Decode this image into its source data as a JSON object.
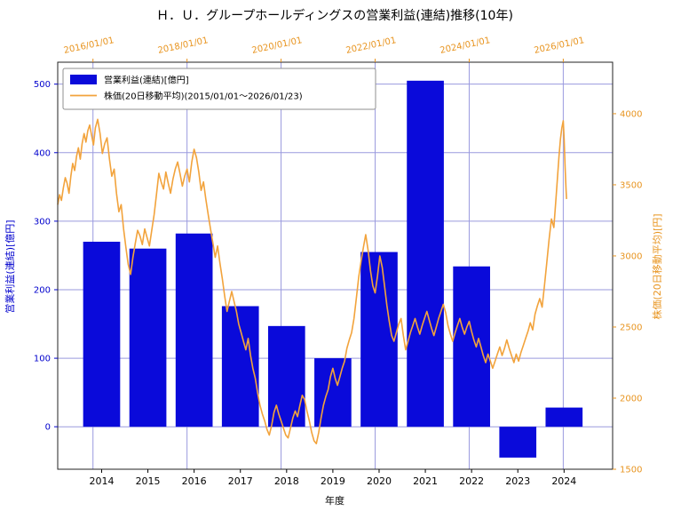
{
  "title": "Ｈ．Ｕ．グループホールディングスの営業利益(連結)推移(10年)",
  "legend": {
    "items": [
      {
        "type": "bar",
        "label": "営業利益(連結)[億円]"
      },
      {
        "type": "line",
        "label": "株価(20日移動平均)(2015/01/01～2026/01/23)"
      }
    ]
  },
  "chart_data": {
    "type": "bar+line",
    "title": "Ｈ．Ｕ．グループホールディングスの営業利益(連結)推移(10年)",
    "xlabel": "年度",
    "ylabel_left": "営業利益(連結)[億円]",
    "ylabel_right": "株価(20日移動平均)[円]",
    "grid": {
      "color": "#9a9ade"
    },
    "frame_color": "#222222",
    "bars": {
      "name": "営業利益(連結)[億円]",
      "axis": "left",
      "color": "#0a0ada",
      "width_years": 0.8,
      "categories": [
        2014,
        2015,
        2016,
        2017,
        2018,
        2019,
        2020,
        2021,
        2022,
        2023,
        2024
      ],
      "values": [
        270,
        260,
        282,
        176,
        147,
        100,
        255,
        505,
        234,
        -45,
        28
      ]
    },
    "line": {
      "name": "株価(20日移動平均)(2015/01/01～2026/01/23)",
      "axis": "right",
      "color": "#f2a33c",
      "points": [
        [
          2015.25,
          3360
        ],
        [
          2015.29,
          3430
        ],
        [
          2015.33,
          3390
        ],
        [
          2015.37,
          3480
        ],
        [
          2015.41,
          3550
        ],
        [
          2015.45,
          3510
        ],
        [
          2015.49,
          3440
        ],
        [
          2015.53,
          3560
        ],
        [
          2015.57,
          3650
        ],
        [
          2015.61,
          3600
        ],
        [
          2015.65,
          3700
        ],
        [
          2015.69,
          3760
        ],
        [
          2015.73,
          3680
        ],
        [
          2015.77,
          3790
        ],
        [
          2015.81,
          3860
        ],
        [
          2015.85,
          3800
        ],
        [
          2015.89,
          3880
        ],
        [
          2015.93,
          3920
        ],
        [
          2015.97,
          3850
        ],
        [
          2016.01,
          3780
        ],
        [
          2016.05,
          3900
        ],
        [
          2016.1,
          3960
        ],
        [
          2016.15,
          3860
        ],
        [
          2016.2,
          3720
        ],
        [
          2016.25,
          3790
        ],
        [
          2016.3,
          3830
        ],
        [
          2016.35,
          3680
        ],
        [
          2016.4,
          3560
        ],
        [
          2016.45,
          3610
        ],
        [
          2016.5,
          3440
        ],
        [
          2016.55,
          3310
        ],
        [
          2016.6,
          3360
        ],
        [
          2016.65,
          3190
        ],
        [
          2016.7,
          3060
        ],
        [
          2016.75,
          2940
        ],
        [
          2016.8,
          2870
        ],
        [
          2016.85,
          2990
        ],
        [
          2016.9,
          3090
        ],
        [
          2016.95,
          3180
        ],
        [
          2017.0,
          3140
        ],
        [
          2017.05,
          3080
        ],
        [
          2017.1,
          3190
        ],
        [
          2017.15,
          3130
        ],
        [
          2017.2,
          3070
        ],
        [
          2017.25,
          3180
        ],
        [
          2017.3,
          3290
        ],
        [
          2017.35,
          3430
        ],
        [
          2017.4,
          3580
        ],
        [
          2017.45,
          3520
        ],
        [
          2017.5,
          3470
        ],
        [
          2017.55,
          3590
        ],
        [
          2017.6,
          3510
        ],
        [
          2017.65,
          3440
        ],
        [
          2017.7,
          3540
        ],
        [
          2017.75,
          3610
        ],
        [
          2017.8,
          3660
        ],
        [
          2017.85,
          3580
        ],
        [
          2017.9,
          3490
        ],
        [
          2017.95,
          3560
        ],
        [
          2018.0,
          3610
        ],
        [
          2018.05,
          3520
        ],
        [
          2018.1,
          3660
        ],
        [
          2018.15,
          3750
        ],
        [
          2018.2,
          3690
        ],
        [
          2018.25,
          3590
        ],
        [
          2018.3,
          3460
        ],
        [
          2018.35,
          3520
        ],
        [
          2018.4,
          3400
        ],
        [
          2018.45,
          3290
        ],
        [
          2018.5,
          3190
        ],
        [
          2018.55,
          3090
        ],
        [
          2018.6,
          2990
        ],
        [
          2018.65,
          3070
        ],
        [
          2018.7,
          2950
        ],
        [
          2018.75,
          2840
        ],
        [
          2018.8,
          2720
        ],
        [
          2018.85,
          2610
        ],
        [
          2018.9,
          2680
        ],
        [
          2018.95,
          2750
        ],
        [
          2019.0,
          2680
        ],
        [
          2019.05,
          2610
        ],
        [
          2019.1,
          2520
        ],
        [
          2019.15,
          2460
        ],
        [
          2019.2,
          2400
        ],
        [
          2019.25,
          2340
        ],
        [
          2019.3,
          2420
        ],
        [
          2019.35,
          2300
        ],
        [
          2019.4,
          2210
        ],
        [
          2019.45,
          2140
        ],
        [
          2019.5,
          2040
        ],
        [
          2019.55,
          1950
        ],
        [
          2019.6,
          1890
        ],
        [
          2019.65,
          1840
        ],
        [
          2019.7,
          1780
        ],
        [
          2019.75,
          1740
        ],
        [
          2019.8,
          1810
        ],
        [
          2019.85,
          1900
        ],
        [
          2019.9,
          1950
        ],
        [
          2019.95,
          1890
        ],
        [
          2020.0,
          1840
        ],
        [
          2020.05,
          1790
        ],
        [
          2020.1,
          1740
        ],
        [
          2020.15,
          1720
        ],
        [
          2020.2,
          1790
        ],
        [
          2020.25,
          1860
        ],
        [
          2020.3,
          1910
        ],
        [
          2020.35,
          1870
        ],
        [
          2020.4,
          1950
        ],
        [
          2020.45,
          2020
        ],
        [
          2020.5,
          1990
        ],
        [
          2020.55,
          1910
        ],
        [
          2020.6,
          1840
        ],
        [
          2020.65,
          1760
        ],
        [
          2020.7,
          1700
        ],
        [
          2020.75,
          1680
        ],
        [
          2020.8,
          1760
        ],
        [
          2020.85,
          1860
        ],
        [
          2020.9,
          1950
        ],
        [
          2020.95,
          2010
        ],
        [
          2021.0,
          2060
        ],
        [
          2021.05,
          2150
        ],
        [
          2021.1,
          2210
        ],
        [
          2021.15,
          2140
        ],
        [
          2021.2,
          2090
        ],
        [
          2021.25,
          2150
        ],
        [
          2021.3,
          2210
        ],
        [
          2021.35,
          2260
        ],
        [
          2021.4,
          2350
        ],
        [
          2021.45,
          2410
        ],
        [
          2021.5,
          2460
        ],
        [
          2021.55,
          2560
        ],
        [
          2021.6,
          2700
        ],
        [
          2021.65,
          2850
        ],
        [
          2021.7,
          2960
        ],
        [
          2021.75,
          3060
        ],
        [
          2021.8,
          3150
        ],
        [
          2021.85,
          3040
        ],
        [
          2021.9,
          2900
        ],
        [
          2021.95,
          2790
        ],
        [
          2022.0,
          2740
        ],
        [
          2022.05,
          2860
        ],
        [
          2022.1,
          3000
        ],
        [
          2022.15,
          2920
        ],
        [
          2022.2,
          2790
        ],
        [
          2022.25,
          2650
        ],
        [
          2022.3,
          2540
        ],
        [
          2022.35,
          2440
        ],
        [
          2022.4,
          2400
        ],
        [
          2022.45,
          2460
        ],
        [
          2022.5,
          2520
        ],
        [
          2022.55,
          2560
        ],
        [
          2022.6,
          2440
        ],
        [
          2022.65,
          2340
        ],
        [
          2022.7,
          2400
        ],
        [
          2022.75,
          2460
        ],
        [
          2022.8,
          2510
        ],
        [
          2022.85,
          2560
        ],
        [
          2022.9,
          2500
        ],
        [
          2022.95,
          2450
        ],
        [
          2023.0,
          2510
        ],
        [
          2023.05,
          2560
        ],
        [
          2023.1,
          2610
        ],
        [
          2023.15,
          2550
        ],
        [
          2023.2,
          2490
        ],
        [
          2023.25,
          2440
        ],
        [
          2023.3,
          2500
        ],
        [
          2023.35,
          2560
        ],
        [
          2023.4,
          2610
        ],
        [
          2023.45,
          2660
        ],
        [
          2023.5,
          2600
        ],
        [
          2023.55,
          2510
        ],
        [
          2023.6,
          2450
        ],
        [
          2023.65,
          2400
        ],
        [
          2023.7,
          2460
        ],
        [
          2023.75,
          2510
        ],
        [
          2023.8,
          2560
        ],
        [
          2023.85,
          2500
        ],
        [
          2023.9,
          2450
        ],
        [
          2023.95,
          2500
        ],
        [
          2024.0,
          2540
        ],
        [
          2024.05,
          2470
        ],
        [
          2024.1,
          2410
        ],
        [
          2024.15,
          2360
        ],
        [
          2024.2,
          2420
        ],
        [
          2024.25,
          2360
        ],
        [
          2024.3,
          2300
        ],
        [
          2024.35,
          2250
        ],
        [
          2024.4,
          2310
        ],
        [
          2024.45,
          2260
        ],
        [
          2024.5,
          2210
        ],
        [
          2024.55,
          2260
        ],
        [
          2024.6,
          2310
        ],
        [
          2024.65,
          2360
        ],
        [
          2024.7,
          2300
        ],
        [
          2024.75,
          2350
        ],
        [
          2024.8,
          2410
        ],
        [
          2024.85,
          2350
        ],
        [
          2024.9,
          2300
        ],
        [
          2024.95,
          2250
        ],
        [
          2025.0,
          2310
        ],
        [
          2025.05,
          2260
        ],
        [
          2025.1,
          2320
        ],
        [
          2025.15,
          2370
        ],
        [
          2025.2,
          2420
        ],
        [
          2025.25,
          2470
        ],
        [
          2025.3,
          2530
        ],
        [
          2025.35,
          2480
        ],
        [
          2025.4,
          2590
        ],
        [
          2025.45,
          2650
        ],
        [
          2025.5,
          2700
        ],
        [
          2025.55,
          2640
        ],
        [
          2025.6,
          2790
        ],
        [
          2025.65,
          2950
        ],
        [
          2025.7,
          3120
        ],
        [
          2025.75,
          3260
        ],
        [
          2025.8,
          3200
        ],
        [
          2025.85,
          3420
        ],
        [
          2025.88,
          3560
        ],
        [
          2025.91,
          3700
        ],
        [
          2025.94,
          3820
        ],
        [
          2025.97,
          3900
        ],
        [
          2026.0,
          3950
        ],
        [
          2026.02,
          3820
        ],
        [
          2026.04,
          3620
        ],
        [
          2026.06,
          3460
        ],
        [
          2026.07,
          3400
        ]
      ]
    },
    "axes": {
      "left": {
        "label": "営業利益(連結)[億円]",
        "color": "#0000cd",
        "ticks": [
          0,
          100,
          200,
          300,
          400,
          500
        ],
        "range": [
          -62,
          532
        ]
      },
      "right": {
        "label": "株価(20日移動平均)[円]",
        "color": "#e8941f",
        "ticks": [
          1500,
          2000,
          2500,
          3000,
          3500,
          4000
        ],
        "range": [
          1500,
          4362
        ]
      },
      "bottom": {
        "label": "年度",
        "color": "#000000",
        "ticks": [
          2014,
          2015,
          2016,
          2017,
          2018,
          2019,
          2020,
          2021,
          2022,
          2023,
          2024
        ],
        "range": [
          2013.05,
          2025.05
        ]
      },
      "top": {
        "color": "#e8941f",
        "tick_labels": [
          "2016/01/01",
          "2018/01/01",
          "2020/01/01",
          "2022/01/01",
          "2024/01/01",
          "2026/01/01"
        ],
        "tick_values": [
          2016,
          2018,
          2020,
          2022,
          2024,
          2026
        ],
        "range": [
          2015.25,
          2027.05
        ]
      }
    }
  }
}
